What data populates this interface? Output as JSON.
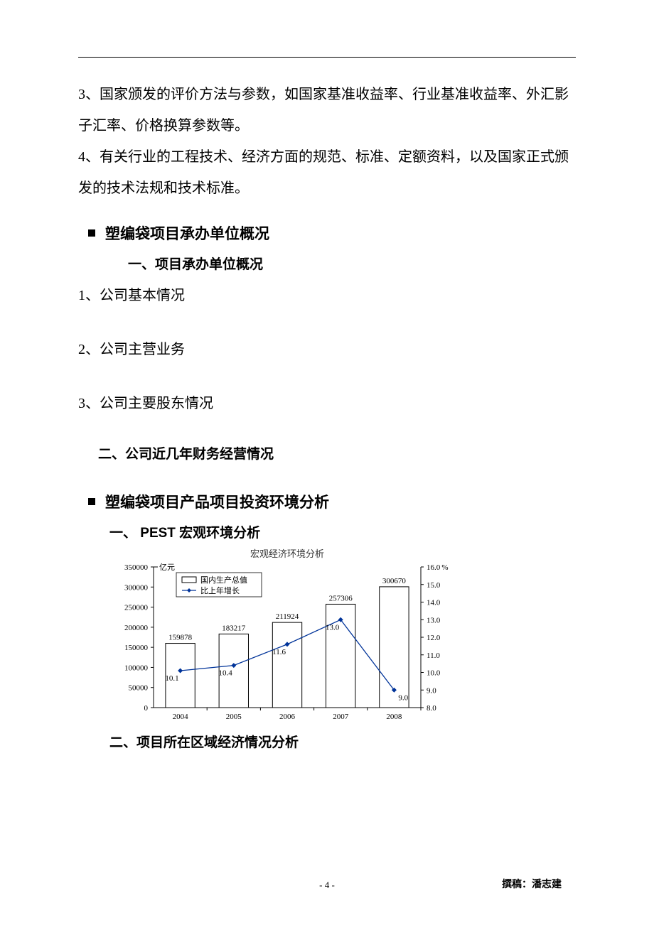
{
  "paragraphs": {
    "p3": "3、国家颁发的评价方法与参数，如国家基准收益率、行业基准收益率、外汇影子汇率、价格换算参数等。",
    "p4": "4、有关行业的工程技术、经济方面的规范、标准、定额资料，以及国家正式颁发的技术法规和技术标准。"
  },
  "section_a": {
    "heading": "塑编袋项目承办单位概况",
    "sub1": "一、项目承办单位概况",
    "items": {
      "i1": "1、公司基本情况",
      "i2": "2、公司主营业务",
      "i3": "3、公司主要股东情况"
    },
    "sub2": "二、公司近几年财务经营情况"
  },
  "section_b": {
    "heading": "塑编袋项目产品项目投资环境分析",
    "sub1": "一、 PEST 宏观环境分析",
    "sub2": "二、项目所在区域经济情况分析"
  },
  "chart": {
    "title": "宏观经济环境分析",
    "y_left_unit": "亿元",
    "y_right_unit": "%",
    "legend_bar": "国内生产总值",
    "legend_line": "比上年增长",
    "categories": [
      "2004",
      "2005",
      "2006",
      "2007",
      "2008"
    ],
    "bar_values": [
      159878,
      183217,
      211924,
      257306,
      300670
    ],
    "line_values": [
      10.1,
      10.4,
      11.6,
      13.0,
      9.0
    ],
    "y_left_ticks": [
      0,
      50000,
      100000,
      150000,
      200000,
      250000,
      300000,
      350000
    ],
    "y_right_ticks": [
      8.0,
      9.0,
      10.0,
      11.0,
      12.0,
      13.0,
      14.0,
      15.0,
      16.0
    ],
    "y_left_max": 350000,
    "y_right_min": 8.0,
    "y_right_max": 16.0,
    "bar_color": "#ffffff",
    "bar_border": "#000000",
    "line_color": "#003399",
    "marker_color": "#003399",
    "grid_color": "#000000",
    "axis_color": "#000000",
    "label_fontsize": 11,
    "title_fontsize": 13
  },
  "footer": {
    "page": "- 4 -",
    "author": "撰稿：潘志建"
  }
}
